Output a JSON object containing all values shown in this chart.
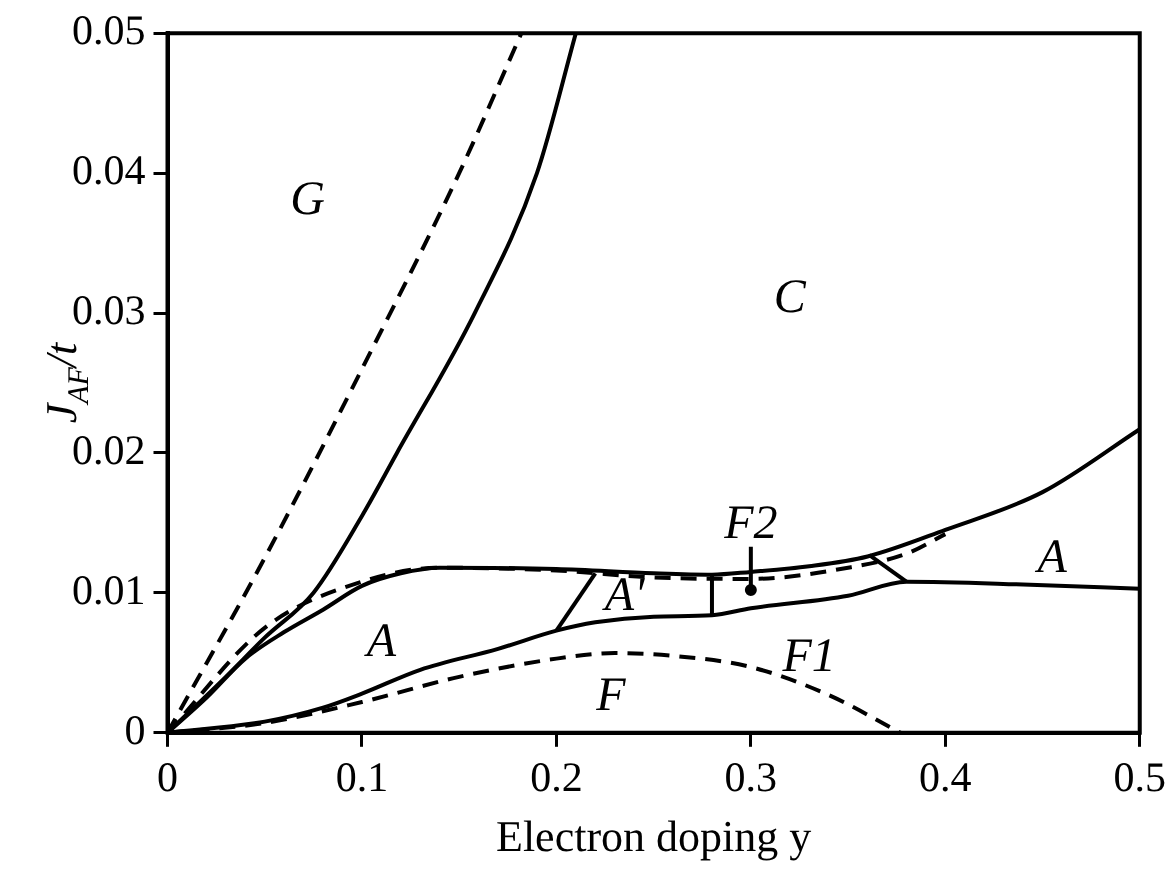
{
  "chart_data": {
    "type": "line",
    "xlabel": "Electron doping y",
    "ylabel": "J$_{AF}$/t",
    "xlim": [
      0,
      0.5
    ],
    "xticks": [
      0,
      0.1,
      0.2,
      0.3,
      0.4,
      0.5
    ],
    "ylim": [
      0,
      0.05
    ],
    "yticks": [
      0,
      0.01,
      0.02,
      0.03,
      0.04,
      0.05
    ],
    "grid": false,
    "legend": false,
    "marker": "none",
    "series": [
      {
        "color": "#000000",
        "line_style": "dashed",
        "x": [
          0,
          0.05,
          0.1,
          0.15,
          0.182
        ],
        "values": [
          0,
          0.0125,
          0.026,
          0.04,
          0.05
        ]
      },
      {
        "color": "#000000",
        "line_style": "solid",
        "x": [
          0,
          0.03,
          0.05,
          0.075,
          0.1,
          0.118,
          0.158,
          0.19,
          0.21
        ],
        "values": [
          0,
          0.004,
          0.0068,
          0.01,
          0.0155,
          0.02,
          0.03,
          0.04,
          0.05
        ]
      },
      {
        "color": "#000000",
        "line_style": "solid",
        "x": [
          0,
          0.02,
          0.04,
          0.06,
          0.08,
          0.1,
          0.12,
          0.14,
          0.2,
          0.25,
          0.28,
          0.3,
          0.33,
          0.36,
          0.4,
          0.45,
          0.5
        ],
        "values": [
          0,
          0.0025,
          0.0053,
          0.0072,
          0.0088,
          0.0105,
          0.0114,
          0.0118,
          0.0117,
          0.0114,
          0.0113,
          0.0115,
          0.0119,
          0.0126,
          0.0145,
          0.0172,
          0.0217
        ]
      },
      {
        "color": "#000000",
        "line_style": "dashed",
        "x": [
          0,
          0.05,
          0.1,
          0.14,
          0.2,
          0.25,
          0.3,
          0.35,
          0.38,
          0.4
        ],
        "values": [
          0,
          0.0075,
          0.0108,
          0.0118,
          0.0116,
          0.0111,
          0.011,
          0.0118,
          0.0128,
          0.0142
        ]
      },
      {
        "color": "#000000",
        "line_style": "solid",
        "x": [
          0,
          0.05,
          0.08,
          0.1,
          0.13,
          0.17,
          0.2,
          0.22,
          0.25,
          0.28,
          0.3,
          0.35,
          0.38,
          0.44,
          0.5
        ],
        "values": [
          0,
          0.0008,
          0.0018,
          0.0028,
          0.0045,
          0.006,
          0.0073,
          0.0079,
          0.0083,
          0.0084,
          0.0089,
          0.0098,
          0.0108,
          0.0106,
          0.0103
        ]
      },
      {
        "color": "#000000",
        "line_style": "solid",
        "x": [
          0.2,
          0.22
        ],
        "values": [
          0.0073,
          0.0114
        ]
      },
      {
        "color": "#000000",
        "line_style": "solid",
        "x": [
          0.28,
          0.28
        ],
        "values": [
          0.0084,
          0.0113
        ]
      },
      {
        "color": "#000000",
        "line_style": "solid",
        "x": [
          0.361,
          0.38
        ],
        "values": [
          0.0127,
          0.0108
        ]
      },
      {
        "color": "#000000",
        "line_style": "solid",
        "x": [
          0.3,
          0.3
        ],
        "values": [
          0.0102,
          0.0133
        ]
      },
      {
        "type": "scatter",
        "color": "#000000",
        "marker": "circle",
        "x": [
          0.3
        ],
        "values": [
          0.0102
        ]
      },
      {
        "color": "#000000",
        "line_style": "dashed",
        "x": [
          0,
          0.05,
          0.1,
          0.15,
          0.2,
          0.23,
          0.26,
          0.3,
          0.34,
          0.377
        ],
        "values": [
          0,
          0.0007,
          0.0022,
          0.004,
          0.0053,
          0.0057,
          0.0055,
          0.0047,
          0.0027,
          0
        ]
      }
    ],
    "annotations": [
      "G",
      "C",
      "A",
      "A'",
      "F2",
      "F1",
      "F",
      "A"
    ]
  }
}
